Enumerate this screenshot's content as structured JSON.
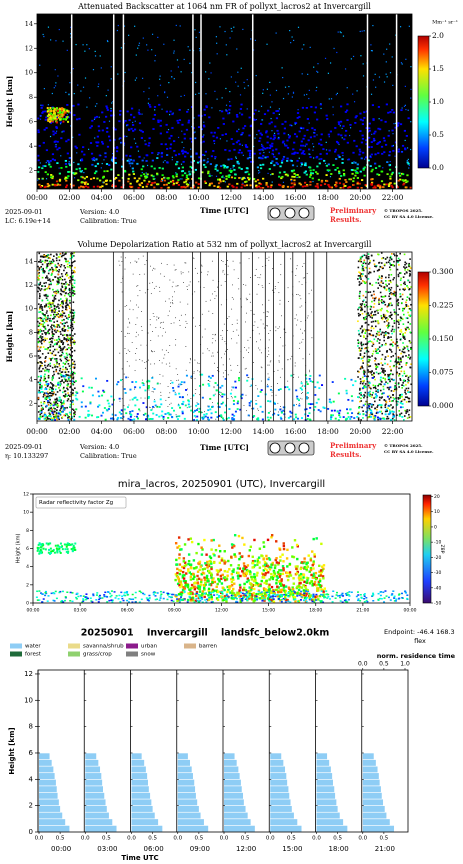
{
  "chart_data": [
    {
      "type": "heatmap",
      "title": "Attenuated Backscatter at 1064 nm FR of pollyxt_lacros2 at Invercargill",
      "xlabel": "Time [UTC]",
      "ylabel": "Height [km]",
      "xlim": [
        0,
        23.2
      ],
      "xticks": [
        {
          "value": 0,
          "label": "00:00"
        },
        {
          "value": 2,
          "label": "02:00"
        },
        {
          "value": 4,
          "label": "04:00"
        },
        {
          "value": 6,
          "label": "06:00"
        },
        {
          "value": 8,
          "label": "08:00"
        },
        {
          "value": 10,
          "label": "10:00"
        },
        {
          "value": 12,
          "label": "12:00"
        },
        {
          "value": 14,
          "label": "14:00"
        },
        {
          "value": 16,
          "label": "16:00"
        },
        {
          "value": 18,
          "label": "18:00"
        },
        {
          "value": 20,
          "label": "20:00"
        },
        {
          "value": 22,
          "label": "22:00"
        }
      ],
      "ylim": [
        0.5,
        14.8
      ],
      "yticks": [
        2,
        4,
        6,
        8,
        10,
        12,
        14
      ],
      "colorbar": {
        "label": "Mm⁻¹ sr⁻¹",
        "lim": [
          0,
          2
        ],
        "ticks": [
          {
            "value": 0,
            "label": "0.0"
          },
          {
            "value": 0.5,
            "label": "0.5"
          },
          {
            "value": 1,
            "label": "1.0"
          },
          {
            "value": 1.5,
            "label": "1.5"
          },
          {
            "value": 2,
            "label": "2.0"
          }
        ]
      },
      "notes": [
        "2025-09-01",
        "LC: 6.19e+14",
        "Version: 4.0",
        "Calibration: True"
      ],
      "badge": [
        "Preliminary",
        "Results."
      ],
      "license": [
        "© TROPOS 2025.",
        "CC BY SA 4.0 License."
      ]
    },
    {
      "type": "heatmap",
      "title": "Volume Depolarization Ratio at 532 nm of pollyxt_lacros2 at Invercargill",
      "xlabel": "Time [UTC]",
      "ylabel": "Height [km]",
      "xlim": [
        0,
        23.2
      ],
      "xticks": [
        {
          "value": 0,
          "label": "00:00"
        },
        {
          "value": 2,
          "label": "02:00"
        },
        {
          "value": 4,
          "label": "04:00"
        },
        {
          "value": 6,
          "label": "06:00"
        },
        {
          "value": 8,
          "label": "08:00"
        },
        {
          "value": 10,
          "label": "10:00"
        },
        {
          "value": 12,
          "label": "12:00"
        },
        {
          "value": 14,
          "label": "14:00"
        },
        {
          "value": 16,
          "label": "16:00"
        },
        {
          "value": 18,
          "label": "18:00"
        },
        {
          "value": 20,
          "label": "20:00"
        },
        {
          "value": 22,
          "label": "22:00"
        }
      ],
      "ylim": [
        0.5,
        14.8
      ],
      "yticks": [
        2,
        4,
        6,
        8,
        10,
        12,
        14
      ],
      "colorbar": {
        "lim": [
          0,
          0.3
        ],
        "ticks": [
          {
            "value": 0,
            "label": "0.000"
          },
          {
            "value": 0.075,
            "label": "0.075"
          },
          {
            "value": 0.15,
            "label": "0.150"
          },
          {
            "value": 0.225,
            "label": "0.225"
          },
          {
            "value": 0.3,
            "label": "0.300"
          }
        ]
      },
      "notes": [
        "2025-09-01",
        "η: 10.133297",
        "Version: 4.0",
        "Calibration: True"
      ],
      "badge": [
        "Preliminary",
        "Results."
      ],
      "license": [
        "© TROPOS 2025.",
        "CC BY SA 4.0 License."
      ]
    },
    {
      "type": "heatmap",
      "title": "mira_lacros, 20250901 (UTC), Invercargill",
      "ylabel": "Height (km)",
      "legend": "Radar reflectivity factor Zg",
      "xlim": [
        0,
        24
      ],
      "xticks": [
        {
          "value": 0,
          "label": "00:00"
        },
        {
          "value": 3,
          "label": "03:00"
        },
        {
          "value": 6,
          "label": "06:00"
        },
        {
          "value": 9,
          "label": "09:00"
        },
        {
          "value": 12,
          "label": "12:00"
        },
        {
          "value": 15,
          "label": "15:00"
        },
        {
          "value": 18,
          "label": "18:00"
        },
        {
          "value": 21,
          "label": "21:00"
        },
        {
          "value": 24,
          "label": "00:00"
        }
      ],
      "ylim": [
        0,
        12
      ],
      "yticks": [
        0,
        2,
        4,
        6,
        8,
        10,
        12
      ],
      "colorbar": {
        "label": "dBZ",
        "lim": [
          -50,
          21
        ],
        "ticks": [
          20,
          10,
          0,
          -10,
          -20,
          -30,
          -40,
          -50
        ]
      }
    },
    {
      "type": "profile",
      "title": "20250901    Invercargill    landsfc_below2.0km",
      "endpoint": "Endpoint: -46.4 168.3",
      "model": "flex",
      "top_label": "norm. residence time",
      "xlabel": "Time UTC",
      "ylabel": "Height [km]",
      "legend": [
        {
          "name": "water",
          "color": "#8ecdf5"
        },
        {
          "name": "forest",
          "color": "#1f6b3a"
        },
        {
          "name": "savanna/shrub",
          "color": "#eadb8a"
        },
        {
          "name": "grass/crop",
          "color": "#8fd16f"
        },
        {
          "name": "urban",
          "color": "#8b1a8b"
        },
        {
          "name": "snow",
          "color": "#7f7f7f"
        },
        {
          "name": "barren",
          "color": "#d9b48a"
        }
      ],
      "ylim": [
        0,
        12.3
      ],
      "yticks": [
        0,
        2,
        4,
        6,
        8,
        10,
        12
      ],
      "fraction_ticks": [
        {
          "value": 0,
          "label": "0.0"
        },
        {
          "value": 0.5,
          "label": "0.5"
        },
        {
          "value": 1,
          "label": "1.0"
        }
      ],
      "heights": [
        0.25,
        0.75,
        1.25,
        1.75,
        2.25,
        2.75,
        3.25,
        3.75,
        4.25,
        4.75,
        5.25,
        5.75
      ],
      "panels": [
        {
          "time": "00:00",
          "values": [
            0.72,
            0.62,
            0.55,
            0.5,
            0.47,
            0.44,
            0.42,
            0.4,
            0.37,
            0.34,
            0.3,
            0.25
          ]
        },
        {
          "time": "03:00",
          "values": [
            0.74,
            0.64,
            0.56,
            0.51,
            0.48,
            0.45,
            0.42,
            0.4,
            0.38,
            0.35,
            0.31,
            0.26
          ]
        },
        {
          "time": "06:00",
          "values": [
            0.73,
            0.63,
            0.55,
            0.5,
            0.47,
            0.44,
            0.41,
            0.39,
            0.37,
            0.34,
            0.3,
            0.24
          ]
        },
        {
          "time": "09:00",
          "values": [
            0.72,
            0.62,
            0.54,
            0.5,
            0.46,
            0.43,
            0.41,
            0.39,
            0.36,
            0.33,
            0.29,
            0.24
          ]
        },
        {
          "time": "12:00",
          "values": [
            0.73,
            0.63,
            0.56,
            0.51,
            0.47,
            0.45,
            0.42,
            0.4,
            0.37,
            0.34,
            0.3,
            0.25
          ]
        },
        {
          "time": "15:00",
          "values": [
            0.74,
            0.64,
            0.56,
            0.51,
            0.48,
            0.45,
            0.43,
            0.4,
            0.38,
            0.35,
            0.31,
            0.26
          ]
        },
        {
          "time": "18:00",
          "values": [
            0.73,
            0.63,
            0.55,
            0.5,
            0.47,
            0.44,
            0.42,
            0.39,
            0.37,
            0.34,
            0.3,
            0.25
          ]
        },
        {
          "time": "21:00",
          "values": [
            0.74,
            0.64,
            0.56,
            0.52,
            0.48,
            0.45,
            0.43,
            0.4,
            0.38,
            0.35,
            0.31,
            0.26
          ]
        }
      ]
    }
  ]
}
